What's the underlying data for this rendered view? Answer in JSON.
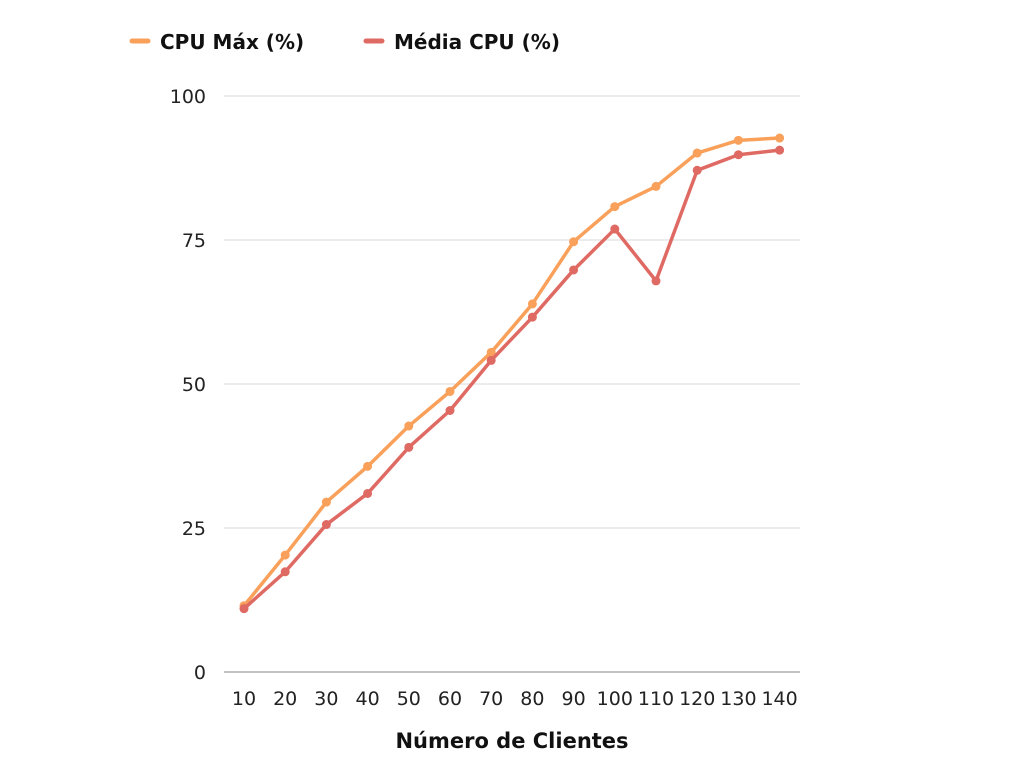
{
  "chart_data": {
    "type": "line",
    "title": "",
    "xlabel": "Número de Clientes",
    "ylabel": "",
    "x": [
      10,
      20,
      30,
      40,
      50,
      60,
      70,
      80,
      90,
      100,
      110,
      120,
      130,
      140
    ],
    "yticks": [
      0,
      25,
      50,
      75,
      100
    ],
    "ylim": [
      0,
      100
    ],
    "grid": true,
    "legend_position": "top-left",
    "series": [
      {
        "name": "CPU Máx (%)",
        "color": "#f9a05b",
        "values": [
          11.5,
          20.3,
          29.5,
          35.7,
          42.7,
          48.7,
          55.5,
          63.9,
          74.7,
          80.8,
          84.3,
          90.1,
          92.3,
          92.7
        ]
      },
      {
        "name": "Média CPU (%)",
        "color": "#df6a63",
        "values": [
          11.0,
          17.4,
          25.6,
          31.0,
          39.0,
          45.4,
          54.1,
          61.6,
          69.8,
          76.9,
          67.9,
          87.1,
          89.8,
          90.6
        ]
      }
    ]
  }
}
